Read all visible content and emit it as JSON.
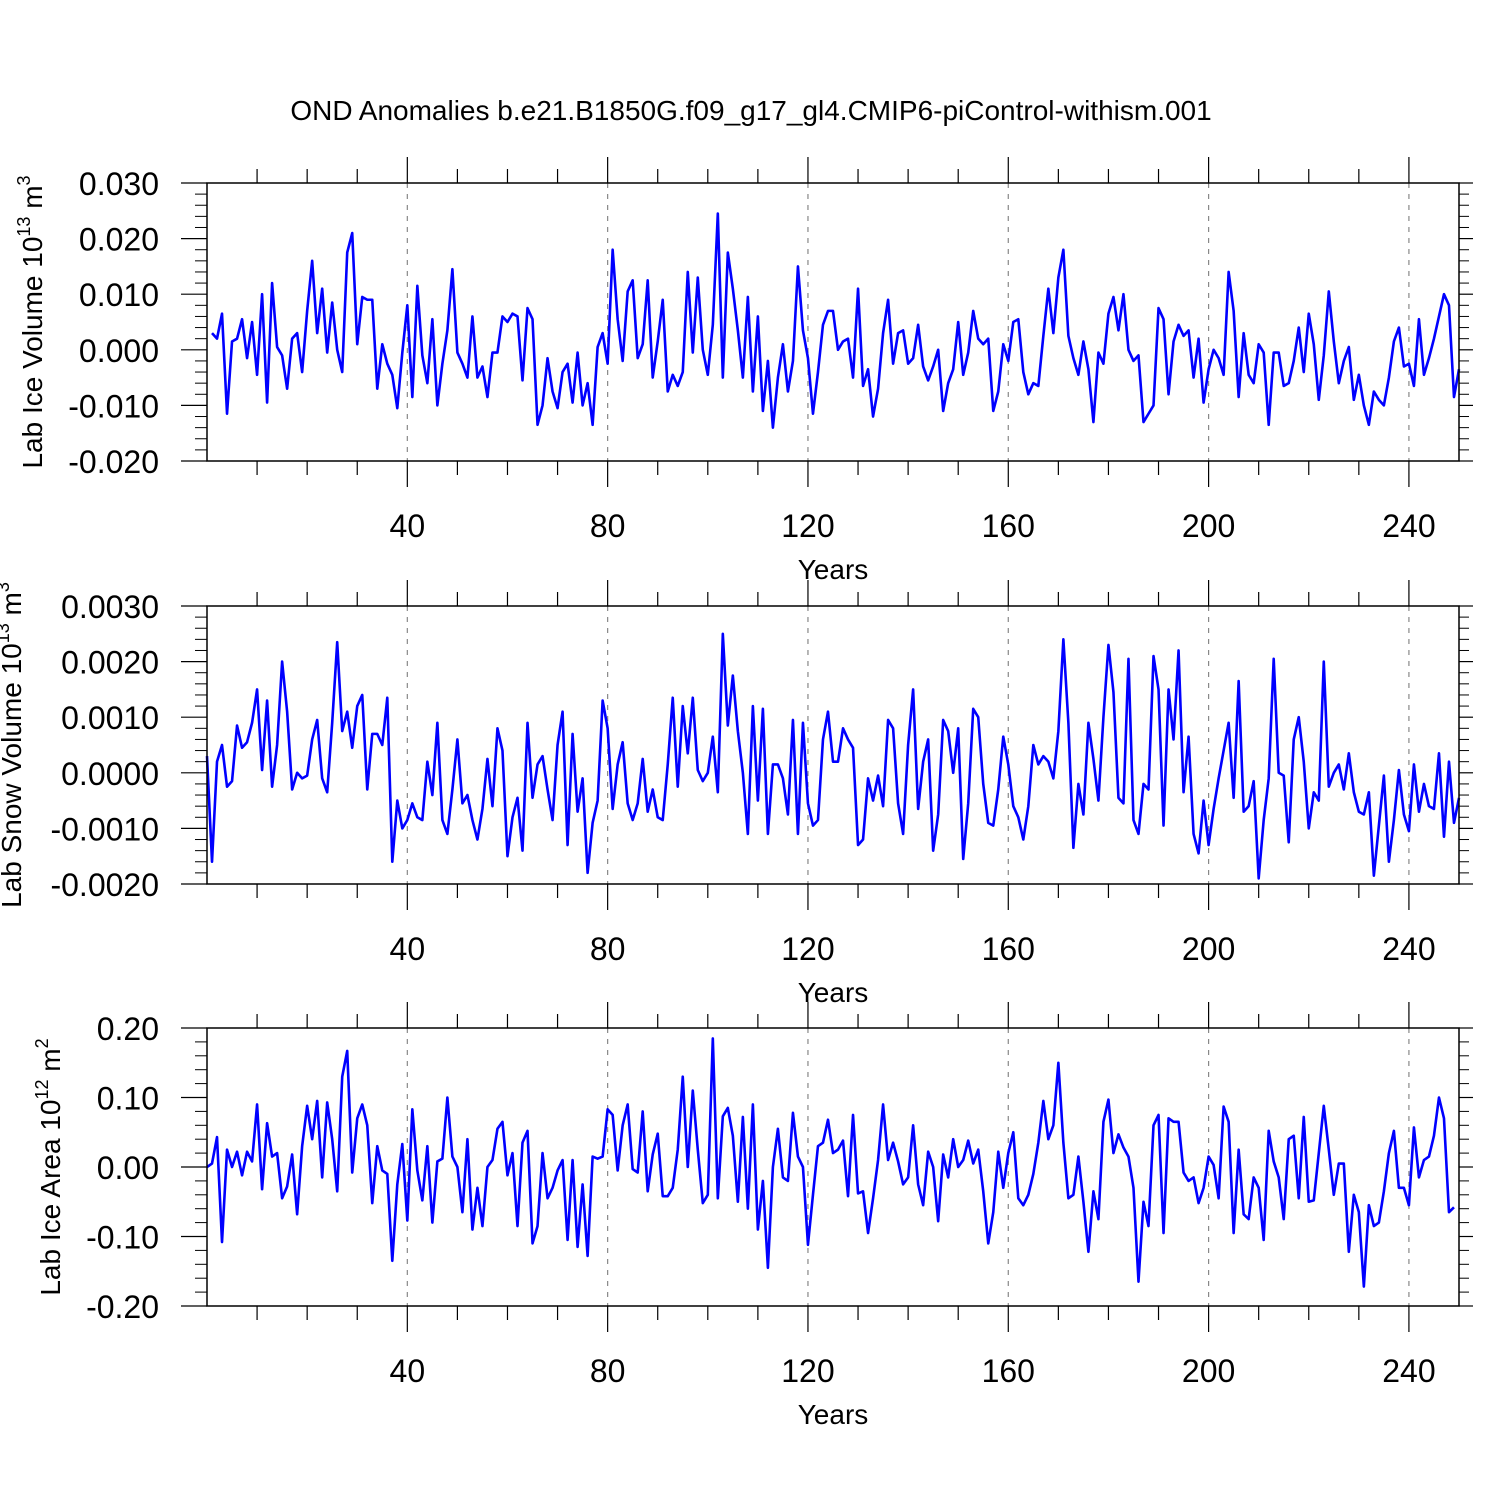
{
  "title": "OND Anomalies b.e21.B1850G.f09_g17_gl4.CMIP6-piControl-withism.001",
  "colors": {
    "series": "#0000ff",
    "axis": "#000000",
    "grid": "#888888"
  },
  "chart_data": [
    {
      "type": "line",
      "title": "OND Anomalies b.e21.B1850G.f09_g17_gl4.CMIP6-piControl-withism.001",
      "xlabel": "Years",
      "ylabel": {
        "main": "Lab Ice Volume 10",
        "sup1": "13",
        "mid": " m",
        "sup2": "3"
      },
      "xlim": [
        0,
        250
      ],
      "ylim": [
        -0.02,
        0.03
      ],
      "xticks": [
        40,
        80,
        120,
        160,
        200,
        240
      ],
      "xtick_labels": [
        "40",
        "80",
        "120",
        "160",
        "200",
        "240"
      ],
      "yticks": [
        -0.02,
        -0.01,
        0.0,
        0.01,
        0.02,
        0.03
      ],
      "ytick_labels": [
        "-0.020",
        "-0.010",
        "0.000",
        "0.010",
        "0.020",
        "0.030"
      ],
      "grid": "vertical dashed at major x ticks",
      "series": [
        {
          "name": "Lab Ice Volume",
          "x_start": 1,
          "values": [
            0.003,
            0.002,
            0.0065,
            -0.0115,
            0.0015,
            0.002,
            0.0055,
            -0.0015,
            0.005,
            -0.0045,
            0.01,
            -0.0095,
            0.012,
            0.0005,
            -0.001,
            -0.007,
            0.002,
            0.003,
            -0.004,
            0.007,
            0.016,
            0.003,
            0.011,
            -0.0005,
            0.0085,
            0.0,
            -0.004,
            0.0175,
            0.021,
            0.001,
            0.0095,
            0.009,
            0.009,
            -0.007,
            0.001,
            -0.0025,
            -0.0045,
            -0.0105,
            -0.0005,
            0.008,
            -0.0085,
            0.0115,
            -0.001,
            -0.006,
            0.0055,
            -0.01,
            -0.0025,
            0.0035,
            0.0145,
            -0.0005,
            -0.0025,
            -0.005,
            0.006,
            -0.005,
            -0.003,
            -0.0085,
            -0.0005,
            -0.0005,
            0.006,
            0.005,
            0.0065,
            0.006,
            -0.0055,
            0.0075,
            0.0055,
            -0.0135,
            -0.01,
            -0.0015,
            -0.0075,
            -0.0105,
            -0.004,
            -0.0025,
            -0.0095,
            -0.0005,
            -0.01,
            -0.006,
            -0.0135,
            0.0005,
            0.003,
            -0.0025,
            0.018,
            0.0055,
            -0.002,
            0.0105,
            0.0125,
            -0.0015,
            0.001,
            0.0125,
            -0.005,
            0.0015,
            0.009,
            -0.0075,
            -0.0045,
            -0.0065,
            -0.004,
            0.014,
            -0.0005,
            0.013,
            0.0,
            -0.0045,
            0.0045,
            0.0245,
            -0.005,
            0.0175,
            0.011,
            0.0035,
            -0.005,
            0.0095,
            -0.0075,
            0.006,
            -0.011,
            -0.002,
            -0.014,
            -0.005,
            0.001,
            -0.0075,
            -0.002,
            0.015,
            0.0035,
            -0.0015,
            -0.0115,
            -0.004,
            0.0045,
            0.007,
            0.007,
            0.0,
            0.0015,
            0.002,
            -0.005,
            0.011,
            -0.0065,
            -0.0035,
            -0.012,
            -0.007,
            0.003,
            0.009,
            -0.0025,
            0.003,
            0.0035,
            -0.0025,
            -0.0015,
            0.0045,
            -0.003,
            -0.0055,
            -0.003,
            0.0,
            -0.011,
            -0.006,
            -0.0035,
            0.005,
            -0.0045,
            -0.0005,
            0.007,
            0.002,
            0.001,
            0.002,
            -0.011,
            -0.0075,
            0.001,
            -0.002,
            0.005,
            0.0055,
            -0.004,
            -0.008,
            -0.006,
            -0.0065,
            0.0025,
            0.011,
            0.003,
            0.013,
            0.018,
            0.0025,
            -0.0015,
            -0.0045,
            0.0015,
            -0.0035,
            -0.013,
            -0.0005,
            -0.0025,
            0.0065,
            0.0095,
            0.0035,
            0.01,
            0.0,
            -0.002,
            -0.001,
            -0.013,
            -0.0115,
            -0.01,
            0.0075,
            0.0055,
            -0.008,
            0.0015,
            0.0045,
            0.0025,
            0.0035,
            -0.005,
            0.002,
            -0.0095,
            -0.0035,
            0.0,
            -0.0015,
            -0.0045,
            0.014,
            0.007,
            -0.0085,
            0.003,
            -0.0045,
            -0.006,
            0.001,
            -0.0005,
            -0.0135,
            -0.0005,
            -0.0005,
            -0.0065,
            -0.006,
            -0.002,
            0.004,
            -0.004,
            0.0065,
            0.001,
            -0.009,
            -0.001,
            0.0105,
            0.0015,
            -0.006,
            -0.002,
            0.0005,
            -0.009,
            -0.0045,
            -0.01,
            -0.0135,
            -0.0075,
            -0.009,
            -0.01,
            -0.005,
            0.0015,
            0.004,
            -0.003,
            -0.0025,
            -0.0065,
            0.0055,
            -0.0045,
            -0.0015,
            0.002,
            0.006,
            0.01,
            0.008,
            -0.0085,
            -0.0035
          ]
        }
      ]
    },
    {
      "type": "line",
      "xlabel": "Years",
      "ylabel": {
        "main": "Lab Snow Volume 10",
        "sup1": "13",
        "mid": " m",
        "sup2": "3"
      },
      "xlim": [
        0,
        250
      ],
      "ylim": [
        -0.002,
        0.003
      ],
      "xticks": [
        40,
        80,
        120,
        160,
        200,
        240
      ],
      "xtick_labels": [
        "40",
        "80",
        "120",
        "160",
        "200",
        "240"
      ],
      "yticks": [
        -0.002,
        -0.001,
        0.0,
        0.001,
        0.002,
        0.003
      ],
      "ytick_labels": [
        "-0.0020",
        "-0.0010",
        "0.0000",
        "0.0010",
        "0.0020",
        "0.0030"
      ],
      "grid": "vertical dashed at major x ticks",
      "series": [
        {
          "name": "Lab Snow Volume",
          "x_start": 0,
          "values": [
            0.0003,
            -0.0016,
            0.0002,
            0.0005,
            -0.00025,
            -0.00015,
            0.00085,
            0.00045,
            0.00055,
            0.0009,
            0.0015,
            5e-05,
            0.0013,
            -0.00025,
            0.0005,
            0.002,
            0.0011,
            -0.0003,
            0.0,
            -0.0001,
            -5e-05,
            0.0006,
            0.00095,
            -0.0001,
            -0.00035,
            0.0009,
            0.00235,
            0.00075,
            0.0011,
            0.00045,
            0.0012,
            0.0014,
            -0.0003,
            0.0007,
            0.0007,
            0.0005,
            0.00135,
            -0.0016,
            -0.0005,
            -0.001,
            -0.00085,
            -0.00055,
            -0.0008,
            -0.00085,
            0.0002,
            -0.0004,
            0.0009,
            -0.00085,
            -0.0011,
            -0.0003,
            0.0006,
            -0.00055,
            -0.0004,
            -0.00085,
            -0.0012,
            -0.00065,
            0.00025,
            -0.0006,
            0.0008,
            0.0004,
            -0.0015,
            -0.0008,
            -0.00045,
            -0.0014,
            0.0009,
            -0.00045,
            0.00015,
            0.0003,
            -0.0003,
            -0.00085,
            0.0005,
            0.0011,
            -0.0013,
            0.0007,
            -0.0007,
            -0.0001,
            -0.0018,
            -0.0009,
            -0.0005,
            0.0013,
            0.0008,
            -0.00065,
            0.00015,
            0.00055,
            -0.00055,
            -0.00085,
            -0.00055,
            0.00025,
            -0.0007,
            -0.0003,
            -0.0008,
            -0.00085,
            0.00015,
            0.00135,
            -0.00025,
            0.0012,
            0.00035,
            0.00135,
            5e-05,
            -0.00015,
            0.0,
            0.00065,
            -0.00035,
            0.0025,
            0.00085,
            0.00175,
            0.00075,
            0.0,
            -0.0011,
            0.0012,
            -0.0005,
            0.00115,
            -0.0011,
            0.00015,
            0.00015,
            -0.0001,
            -0.00075,
            0.00095,
            -0.0011,
            0.0009,
            -0.00055,
            -0.00095,
            -0.00085,
            0.0006,
            0.0011,
            0.0002,
            0.0002,
            0.0008,
            0.0006,
            0.00045,
            -0.0013,
            -0.0012,
            -0.0001,
            -0.0005,
            -5e-05,
            -0.0006,
            0.00095,
            0.0008,
            -0.00055,
            -0.0011,
            0.0005,
            0.0015,
            -0.00065,
            0.0002,
            0.0006,
            -0.0014,
            -0.00075,
            0.00095,
            0.00075,
            0.0,
            0.0008,
            -0.00155,
            -0.00055,
            0.00115,
            0.001,
            -0.0002,
            -0.0009,
            -0.00095,
            -0.0003,
            0.00065,
            0.00015,
            -0.0006,
            -0.0008,
            -0.0012,
            -0.0006,
            0.0005,
            0.00015,
            0.0003,
            0.0002,
            -0.0001,
            0.00075,
            0.0024,
            0.0009,
            -0.00135,
            -0.0002,
            -0.00075,
            0.0009,
            0.00025,
            -0.0005,
            0.001,
            0.0023,
            0.00145,
            -0.00045,
            -0.00055,
            0.00205,
            -0.00085,
            -0.0011,
            -0.0002,
            -0.0003,
            0.0021,
            0.0015,
            -0.00095,
            0.0015,
            0.0006,
            0.0022,
            -0.00035,
            0.00065,
            -0.0011,
            -0.00145,
            -0.0005,
            -0.0013,
            -0.00065,
            -0.0001,
            0.0004,
            0.0009,
            -0.00045,
            0.00165,
            -0.0007,
            -0.0006,
            -0.00015,
            -0.0019,
            -0.00085,
            -0.0001,
            0.00205,
            0.0,
            -5e-05,
            -0.00125,
            0.0006,
            0.001,
            0.0002,
            -0.001,
            -0.00035,
            -0.0005,
            0.002,
            -0.00025,
            0.0,
            0.00015,
            -0.0003,
            0.00035,
            -0.00035,
            -0.0007,
            -0.00075,
            -0.00035,
            -0.00185,
            -0.00095,
            -5e-05,
            -0.0016,
            -0.00085,
            5e-05,
            -0.00075,
            -0.00105,
            0.00015,
            -0.0007,
            -0.0002,
            -0.0006,
            -0.00065,
            0.00035,
            -0.00115,
            0.0002,
            -0.0009,
            -0.00045
          ]
        }
      ]
    },
    {
      "type": "line",
      "xlabel": "Years",
      "ylabel": {
        "main": "Lab Ice Area 10",
        "sup1": "12",
        "mid": " m",
        "sup2": "2"
      },
      "xlim": [
        0,
        250
      ],
      "ylim": [
        -0.2,
        0.2
      ],
      "xticks": [
        40,
        80,
        120,
        160,
        200,
        240
      ],
      "xtick_labels": [
        "40",
        "80",
        "120",
        "160",
        "200",
        "240"
      ],
      "yticks": [
        -0.2,
        -0.1,
        0.0,
        0.1,
        0.2
      ],
      "ytick_labels": [
        "-0.20",
        "-0.10",
        "0.00",
        "0.10",
        "0.20"
      ],
      "grid": "vertical dashed at major x ticks",
      "series": [
        {
          "name": "Lab Ice Area",
          "x_start": 0,
          "values": [
            0.0,
            0.005,
            0.043,
            -0.108,
            0.025,
            0.0,
            0.022,
            -0.012,
            0.022,
            0.008,
            0.09,
            -0.032,
            0.063,
            0.015,
            0.02,
            -0.045,
            -0.028,
            0.018,
            -0.068,
            0.03,
            0.088,
            0.04,
            0.095,
            -0.015,
            0.093,
            0.04,
            -0.035,
            0.13,
            0.167,
            -0.008,
            0.07,
            0.09,
            0.06,
            -0.052,
            0.03,
            -0.005,
            -0.01,
            -0.135,
            -0.025,
            0.033,
            -0.077,
            0.083,
            -0.005,
            -0.048,
            0.03,
            -0.08,
            0.008,
            0.012,
            0.1,
            0.015,
            0.0,
            -0.065,
            0.04,
            -0.09,
            -0.03,
            -0.085,
            0.0,
            0.01,
            0.055,
            0.065,
            -0.012,
            0.02,
            -0.085,
            0.035,
            0.052,
            -0.11,
            -0.085,
            0.02,
            -0.045,
            -0.03,
            -0.005,
            0.01,
            -0.105,
            0.01,
            -0.115,
            -0.025,
            -0.128,
            0.015,
            0.012,
            0.015,
            0.083,
            0.075,
            -0.005,
            0.06,
            0.09,
            -0.003,
            -0.008,
            0.08,
            -0.035,
            0.018,
            0.048,
            -0.042,
            -0.042,
            -0.03,
            0.025,
            0.13,
            0.0,
            0.11,
            0.025,
            -0.052,
            -0.04,
            0.185,
            -0.045,
            0.073,
            0.085,
            0.045,
            -0.05,
            0.072,
            -0.06,
            0.09,
            -0.09,
            -0.02,
            -0.145,
            0.0,
            0.055,
            -0.015,
            -0.02,
            0.078,
            0.015,
            0.0,
            -0.112,
            -0.04,
            0.03,
            0.035,
            0.068,
            0.02,
            0.025,
            0.038,
            -0.042,
            0.075,
            -0.038,
            -0.035,
            -0.095,
            -0.045,
            0.01,
            0.09,
            0.01,
            0.035,
            0.008,
            -0.025,
            -0.015,
            0.06,
            -0.025,
            -0.055,
            0.022,
            0.0,
            -0.078,
            0.018,
            -0.015,
            0.04,
            0.0,
            0.01,
            0.038,
            0.005,
            0.025,
            -0.035,
            -0.11,
            -0.065,
            0.022,
            -0.03,
            0.02,
            0.05,
            -0.045,
            -0.055,
            -0.04,
            -0.01,
            0.035,
            0.095,
            0.04,
            0.06,
            0.15,
            0.035,
            -0.045,
            -0.04,
            0.015,
            -0.05,
            -0.122,
            -0.035,
            -0.075,
            0.065,
            0.097,
            0.02,
            0.047,
            0.028,
            0.015,
            -0.03,
            -0.165,
            -0.05,
            -0.085,
            0.06,
            0.075,
            -0.095,
            0.07,
            0.065,
            0.065,
            -0.008,
            -0.02,
            -0.015,
            -0.052,
            -0.03,
            0.015,
            0.003,
            -0.045,
            0.087,
            0.065,
            -0.095,
            0.025,
            -0.068,
            -0.075,
            -0.015,
            -0.03,
            -0.105,
            0.052,
            0.008,
            -0.015,
            -0.075,
            0.04,
            0.045,
            -0.045,
            0.072,
            -0.05,
            -0.048,
            0.02,
            0.088,
            0.025,
            -0.04,
            0.005,
            0.005,
            -0.122,
            -0.04,
            -0.065,
            -0.172,
            -0.055,
            -0.085,
            -0.08,
            -0.035,
            0.02,
            0.052,
            -0.03,
            -0.03,
            -0.055,
            0.057,
            -0.015,
            0.01,
            0.015,
            0.045,
            0.1,
            0.07,
            -0.065,
            -0.058
          ]
        }
      ]
    }
  ]
}
